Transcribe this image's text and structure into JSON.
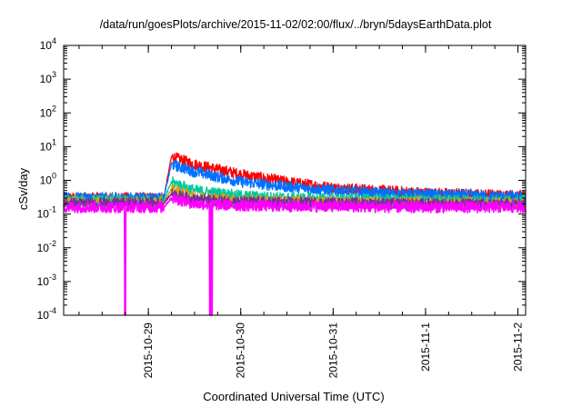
{
  "chart_data": {
    "type": "line",
    "title": "/data/run/goesPlots/archive/2015-11-02/02:00/flux/../bryn/5daysEarthData.plot",
    "xlabel": "Coordinated Universal Time (UTC)",
    "ylabel": "cSv/day",
    "y_scale": "log",
    "ylim": [
      0.0001,
      10000
    ],
    "xlim": [
      "2015-10-28T02:00",
      "2015-11-02T02:00"
    ],
    "y_ticks": [
      {
        "value": 0.0001,
        "base": "10",
        "exp": "-4"
      },
      {
        "value": 0.001,
        "base": "10",
        "exp": "-3"
      },
      {
        "value": 0.01,
        "base": "10",
        "exp": "-2"
      },
      {
        "value": 0.1,
        "base": "10",
        "exp": "-1"
      },
      {
        "value": 1,
        "base": "10",
        "exp": "0"
      },
      {
        "value": 10,
        "base": "10",
        "exp": "1"
      },
      {
        "value": 100,
        "base": "10",
        "exp": "2"
      },
      {
        "value": 1000,
        "base": "10",
        "exp": "3"
      },
      {
        "value": 10000,
        "base": "10",
        "exp": "4"
      }
    ],
    "x_ticks": [
      "2015-10-29",
      "2015-10-30",
      "2015-10-31",
      "2015-11-1",
      "2015-11-2"
    ],
    "x_tick_dates": [
      "2015-10-29T00:00",
      "2015-10-30T00:00",
      "2015-10-31T00:00",
      "2015-11-01T00:00",
      "2015-11-02T00:00"
    ],
    "grid": false,
    "legend": "none",
    "event_start": "2015-10-29T04:00",
    "event_peak": "2015-10-29T06:00",
    "series": [
      {
        "color": "#ff0000",
        "x": [
          "2015-10-28T02:00",
          "2015-10-29T04:00",
          "2015-10-29T06:00",
          "2015-10-29T12:00",
          "2015-10-30T00:00",
          "2015-10-30T12:00",
          "2015-10-31T00:00",
          "2015-10-31T12:00",
          "2015-11-01T00:00",
          "2015-11-02T02:00"
        ],
        "y": [
          0.3,
          0.3,
          5.0,
          3.0,
          1.5,
          0.9,
          0.6,
          0.5,
          0.42,
          0.35
        ],
        "dropouts": []
      },
      {
        "color": "#0070ff",
        "x": [
          "2015-10-28T02:00",
          "2015-10-29T04:00",
          "2015-10-29T06:00",
          "2015-10-29T12:00",
          "2015-10-30T00:00",
          "2015-10-30T12:00",
          "2015-10-31T00:00",
          "2015-10-31T12:00",
          "2015-11-01T00:00",
          "2015-11-02T02:00"
        ],
        "y": [
          0.3,
          0.3,
          3.0,
          1.8,
          0.9,
          0.65,
          0.5,
          0.42,
          0.38,
          0.32
        ],
        "dropouts": []
      },
      {
        "color": "#00c8a0",
        "x": [
          "2015-10-28T02:00",
          "2015-10-29T04:00",
          "2015-10-29T06:00",
          "2015-10-29T12:00",
          "2015-10-30T00:00",
          "2015-10-30T12:00",
          "2015-10-31T00:00",
          "2015-10-31T12:00",
          "2015-11-01T00:00",
          "2015-11-02T02:00"
        ],
        "y": [
          0.25,
          0.25,
          0.9,
          0.5,
          0.35,
          0.3,
          0.28,
          0.27,
          0.26,
          0.25
        ],
        "dropouts": []
      },
      {
        "color": "#e0a000",
        "x": [
          "2015-10-28T02:00",
          "2015-10-29T04:00",
          "2015-10-29T06:00",
          "2015-10-29T12:00",
          "2015-10-30T00:00",
          "2015-10-30T12:00",
          "2015-10-31T00:00",
          "2015-10-31T12:00",
          "2015-11-01T00:00",
          "2015-11-02T02:00"
        ],
        "y": [
          0.22,
          0.22,
          0.55,
          0.33,
          0.26,
          0.24,
          0.23,
          0.22,
          0.22,
          0.21
        ],
        "dropouts": []
      },
      {
        "color": "#7030a0",
        "x": [
          "2015-10-28T02:00",
          "2015-10-29T04:00",
          "2015-10-29T06:00",
          "2015-10-29T12:00",
          "2015-10-30T00:00",
          "2015-10-30T12:00",
          "2015-10-31T00:00",
          "2015-10-31T12:00",
          "2015-11-01T00:00",
          "2015-11-02T02:00"
        ],
        "y": [
          0.21,
          0.21,
          0.4,
          0.27,
          0.23,
          0.22,
          0.21,
          0.21,
          0.2,
          0.2
        ],
        "dropouts": []
      },
      {
        "color": "#ff00ff",
        "x": [
          "2015-10-28T02:00",
          "2015-10-29T04:00",
          "2015-10-29T06:00",
          "2015-10-29T12:00",
          "2015-10-30T00:00",
          "2015-10-30T12:00",
          "2015-10-31T00:00",
          "2015-10-31T12:00",
          "2015-11-01T00:00",
          "2015-11-02T02:00"
        ],
        "y": [
          0.16,
          0.16,
          0.3,
          0.2,
          0.18,
          0.17,
          0.17,
          0.16,
          0.16,
          0.16
        ],
        "dropouts": [
          "2015-10-28T18:00",
          "2015-10-29T16:00",
          "2015-10-29T16:30"
        ]
      }
    ]
  }
}
